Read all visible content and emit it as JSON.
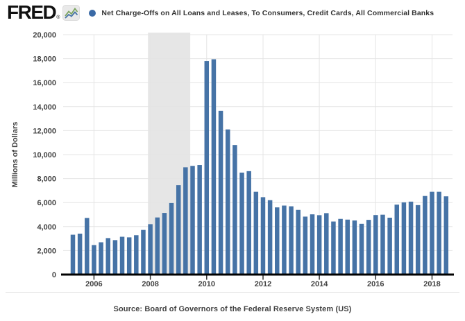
{
  "header": {
    "logo_text": "FRED",
    "registered": "®",
    "brand_color": "#111111"
  },
  "chart_data": {
    "type": "bar",
    "title": "",
    "ylabel": "Millions of Dollars",
    "ylim": [
      0,
      20000
    ],
    "ytick_step": 2000,
    "ytick_labels": [
      "0",
      "2,000",
      "4,000",
      "6,000",
      "8,000",
      "10,000",
      "12,000",
      "14,000",
      "16,000",
      "18,000",
      "20,000"
    ],
    "xtick_years": [
      2006,
      2008,
      2010,
      2012,
      2014,
      2016,
      2018
    ],
    "x_start": "2005 Q2",
    "x_end": "2018 Q3",
    "frequency": "quarterly",
    "grid": "on",
    "legend_position": "top",
    "bar_color": "#4673a6",
    "legend_dot_color": "#3a6aa6",
    "grid_color": "#e4e4e4",
    "axis_color": "#000000",
    "recession_band": {
      "start": "2007-12",
      "end": "2009-06",
      "color": "#e6e6e6"
    },
    "categories": [
      "2005 Q2",
      "2005 Q3",
      "2005 Q4",
      "2006 Q1",
      "2006 Q2",
      "2006 Q3",
      "2006 Q4",
      "2007 Q1",
      "2007 Q2",
      "2007 Q3",
      "2007 Q4",
      "2008 Q1",
      "2008 Q2",
      "2008 Q3",
      "2008 Q4",
      "2009 Q1",
      "2009 Q2",
      "2009 Q3",
      "2009 Q4",
      "2010 Q1",
      "2010 Q2",
      "2010 Q3",
      "2010 Q4",
      "2011 Q1",
      "2011 Q2",
      "2011 Q3",
      "2011 Q4",
      "2012 Q1",
      "2012 Q2",
      "2012 Q3",
      "2012 Q4",
      "2013 Q1",
      "2013 Q2",
      "2013 Q3",
      "2013 Q4",
      "2014 Q1",
      "2014 Q2",
      "2014 Q3",
      "2014 Q4",
      "2015 Q1",
      "2015 Q2",
      "2015 Q3",
      "2015 Q4",
      "2016 Q1",
      "2016 Q2",
      "2016 Q3",
      "2016 Q4",
      "2017 Q1",
      "2017 Q2",
      "2017 Q3",
      "2017 Q4",
      "2018 Q1",
      "2018 Q2",
      "2018 Q3"
    ],
    "series": [
      {
        "name": "Net Charge-Offs on All Loans and Leases, To Consumers, Credit Cards, All Commercial Banks",
        "values": [
          3320,
          3410,
          4720,
          2460,
          2690,
          3040,
          2870,
          3150,
          3100,
          3280,
          3720,
          4200,
          4760,
          5140,
          5960,
          7450,
          8940,
          9060,
          9130,
          17800,
          17950,
          13650,
          12100,
          10800,
          8500,
          8620,
          6900,
          6450,
          6200,
          5600,
          5750,
          5690,
          5390,
          4830,
          5020,
          4950,
          5120,
          4420,
          4640,
          4580,
          4510,
          4230,
          4560,
          4960,
          4990,
          4740,
          5830,
          6020,
          6080,
          5790,
          6550,
          6900,
          6900,
          6520
        ]
      }
    ]
  },
  "footer": {
    "source": "Source: Board of Governors of the Federal Reserve System (US)"
  }
}
